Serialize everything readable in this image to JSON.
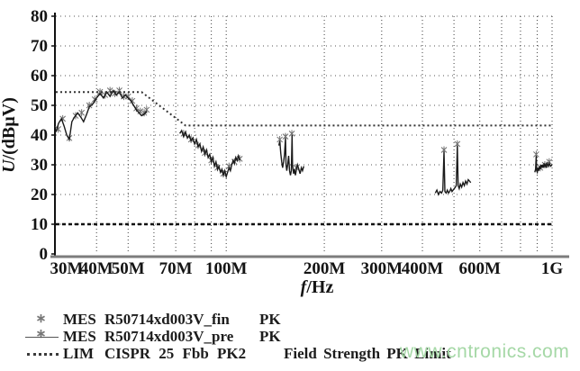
{
  "watermark": {
    "text": "www.cntronics.com",
    "color": "#a5d8a6"
  },
  "legend": {
    "marker_glyph": "∗ ∗",
    "rows": [
      {
        "symbol": "x-markers",
        "type": "MES",
        "name": "R50714xd003V_fin",
        "suffix": "PK"
      },
      {
        "symbol": "solid-line",
        "type": "MES",
        "name": "R50714xd003V_pre",
        "suffix": "PK"
      },
      {
        "symbol": "dotted-line",
        "type": "LIM",
        "name": "CISPR 25 Fbb PK2",
        "suffix": ""
      }
    ],
    "extra_label": "Field Strength PK  Limit"
  },
  "chart_data": {
    "type": "line",
    "title": "",
    "xlabel": "f/Hz",
    "ylabel": "U/(dBµV)",
    "x_scale": "log",
    "x_unit": "MHz",
    "xlim_mhz": [
      30,
      1000
    ],
    "ylim": [
      0,
      80
    ],
    "grid": true,
    "legend_position": "bottom-left",
    "y_ticks": [
      0,
      10,
      20,
      30,
      40,
      50,
      60,
      70,
      80
    ],
    "x_ticks": [
      {
        "f_mhz": 30,
        "label": "30M"
      },
      {
        "f_mhz": 40,
        "label": "40M"
      },
      {
        "f_mhz": 50,
        "label": "50M"
      },
      {
        "f_mhz": 70,
        "label": "70M"
      },
      {
        "f_mhz": 100,
        "label": "100M"
      },
      {
        "f_mhz": 200,
        "label": "200M"
      },
      {
        "f_mhz": 300,
        "label": "300M"
      },
      {
        "f_mhz": 400,
        "label": "400M"
      },
      {
        "f_mhz": 600,
        "label": "600M"
      },
      {
        "f_mhz": 1000,
        "label": "1G"
      }
    ],
    "x_gridlines_mhz": [
      40,
      50,
      60,
      70,
      80,
      90,
      100,
      200,
      300,
      400,
      500,
      600,
      700,
      800,
      900,
      1000
    ],
    "series": [
      {
        "id": "fin",
        "name": "MES R50714xd003V_fin PK",
        "type": "scatter",
        "marker": "x",
        "color": "#6f6f6f",
        "points": [
          [
            30.5,
            42
          ],
          [
            31.5,
            45.5
          ],
          [
            33,
            39
          ],
          [
            34.5,
            46.5
          ],
          [
            36,
            47.5
          ],
          [
            38,
            50
          ],
          [
            39.5,
            52
          ],
          [
            41,
            54.5
          ],
          [
            42.5,
            53.5
          ],
          [
            44,
            55
          ],
          [
            45.5,
            54
          ],
          [
            47,
            55
          ],
          [
            48.5,
            53
          ],
          [
            50,
            53
          ],
          [
            51.5,
            51.5
          ],
          [
            53,
            49
          ],
          [
            54.5,
            48
          ],
          [
            56,
            47.5
          ],
          [
            57,
            48.5
          ],
          [
            74,
            40.5
          ],
          [
            78,
            38.5
          ],
          [
            82,
            36.5
          ],
          [
            86,
            34
          ],
          [
            90,
            31.5
          ],
          [
            94,
            29
          ],
          [
            98,
            27
          ],
          [
            102,
            29.5
          ],
          [
            106,
            31
          ],
          [
            110,
            32
          ],
          [
            146,
            38.5
          ],
          [
            152,
            39.5
          ],
          [
            159,
            40.5
          ],
          [
            164,
            29
          ],
          [
            466,
            35
          ],
          [
            512,
            37
          ],
          [
            894,
            33.5
          ],
          [
            920,
            29
          ],
          [
            950,
            30
          ],
          [
            980,
            31
          ]
        ]
      },
      {
        "id": "pre",
        "name": "MES R50714xd003V_pre PK",
        "type": "line",
        "color": "#1a1a1a",
        "segments": [
          [
            [
              30,
              41
            ],
            [
              30.6,
              44
            ],
            [
              31.2,
              45.5
            ],
            [
              31.8,
              43
            ],
            [
              32.4,
              40
            ],
            [
              33,
              38.5
            ],
            [
              33.6,
              44.5
            ],
            [
              34.2,
              46
            ],
            [
              35,
              47.5
            ],
            [
              35.8,
              46
            ],
            [
              36.5,
              44.5
            ],
            [
              37.3,
              47
            ],
            [
              38,
              49.5
            ],
            [
              39,
              50.5
            ],
            [
              40,
              52.5
            ],
            [
              41,
              54
            ],
            [
              42,
              52.5
            ],
            [
              43,
              54.5
            ],
            [
              44,
              53
            ],
            [
              45,
              55
            ],
            [
              46,
              53.5
            ],
            [
              47,
              54.5
            ],
            [
              48,
              52.5
            ],
            [
              49,
              53.5
            ],
            [
              50,
              52.5
            ],
            [
              51,
              51.5
            ],
            [
              52,
              50
            ],
            [
              53,
              48.5
            ],
            [
              54,
              47.5
            ],
            [
              55,
              46.5
            ],
            [
              56,
              47
            ],
            [
              57,
              48
            ]
          ],
          [
            [
              72,
              40.5
            ],
            [
              73,
              41.5
            ],
            [
              74,
              39.5
            ],
            [
              75,
              41
            ],
            [
              76,
              39
            ],
            [
              77,
              40
            ],
            [
              78,
              38
            ],
            [
              79,
              39
            ],
            [
              80,
              37
            ],
            [
              81,
              38.5
            ],
            [
              82,
              36
            ],
            [
              83,
              37
            ],
            [
              84,
              34.5
            ],
            [
              85,
              36
            ],
            [
              86,
              33.5
            ],
            [
              87,
              35
            ],
            [
              88,
              32.5
            ],
            [
              89,
              33.5
            ],
            [
              90,
              31
            ],
            [
              91,
              32.5
            ],
            [
              92,
              29.5
            ],
            [
              93,
              31
            ],
            [
              94,
              28.5
            ],
            [
              95,
              29.5
            ],
            [
              96,
              27.5
            ],
            [
              97,
              28.5
            ],
            [
              98,
              26.5
            ],
            [
              99,
              28
            ],
            [
              100,
              26
            ],
            [
              101,
              27.5
            ],
            [
              102,
              29
            ],
            [
              103,
              28
            ],
            [
              104,
              30
            ],
            [
              105,
              31.5
            ],
            [
              106,
              30.5
            ],
            [
              107,
              32.5
            ],
            [
              108,
              31.5
            ],
            [
              109,
              33
            ],
            [
              110,
              31.5
            ]
          ],
          [
            [
              145,
              36.5
            ],
            [
              146,
              38
            ],
            [
              147,
              34
            ],
            [
              148,
              31
            ],
            [
              149,
              29
            ],
            [
              150,
              31
            ],
            [
              151,
              33.5
            ],
            [
              152,
              39
            ],
            [
              152.6,
              30
            ],
            [
              153.4,
              28
            ],
            [
              154.4,
              30
            ],
            [
              155.4,
              33
            ],
            [
              156.4,
              28
            ],
            [
              157.4,
              26.5
            ],
            [
              158.4,
              28
            ],
            [
              159.2,
              40
            ],
            [
              159.8,
              30
            ],
            [
              161,
              27
            ],
            [
              162,
              28.5
            ],
            [
              163,
              26.5
            ],
            [
              164,
              28
            ],
            [
              165.5,
              30
            ],
            [
              167,
              28.5
            ],
            [
              168.5,
              27
            ],
            [
              170,
              29
            ],
            [
              171.5,
              28
            ],
            [
              173,
              29.5
            ]
          ],
          [
            [
              438,
              20.5
            ],
            [
              443,
              21.5
            ],
            [
              448,
              20
            ],
            [
              453,
              21
            ],
            [
              458,
              20.5
            ],
            [
              462,
              21.5
            ],
            [
              466,
              34.5
            ],
            [
              469,
              21
            ],
            [
              473,
              20.5
            ],
            [
              477,
              21.5
            ],
            [
              481,
              20.5
            ],
            [
              485,
              21
            ],
            [
              489,
              22
            ],
            [
              493,
              21
            ],
            [
              497,
              21.5
            ],
            [
              501,
              22
            ],
            [
              505,
              22.5
            ],
            [
              508,
              23
            ],
            [
              512,
              36.5
            ],
            [
              515,
              23
            ],
            [
              519,
              22
            ],
            [
              523,
              23.5
            ],
            [
              528,
              22.5
            ],
            [
              533,
              24
            ],
            [
              538,
              23
            ],
            [
              543,
              24.5
            ],
            [
              548,
              23.5
            ],
            [
              553,
              25
            ],
            [
              558,
              24.5
            ],
            [
              563,
              24
            ]
          ],
          [
            [
              885,
              27.5
            ],
            [
              890,
              28.5
            ],
            [
              894,
              33
            ],
            [
              897,
              28
            ],
            [
              901,
              27.5
            ],
            [
              906,
              29
            ],
            [
              910,
              28
            ],
            [
              915,
              29.5
            ],
            [
              920,
              28.5
            ],
            [
              925,
              30
            ],
            [
              930,
              29
            ],
            [
              935,
              30
            ],
            [
              940,
              29
            ],
            [
              945,
              30.5
            ],
            [
              950,
              29.5
            ],
            [
              955,
              30
            ],
            [
              960,
              29
            ],
            [
              965,
              30.5
            ],
            [
              970,
              30
            ],
            [
              975,
              29.5
            ],
            [
              980,
              30.5
            ],
            [
              985,
              30
            ],
            [
              990,
              29.5
            ],
            [
              1000,
              30
            ]
          ]
        ]
      },
      {
        "id": "cispr-limit",
        "name": "LIM CISPR 25 Fbb PK2",
        "type": "limit",
        "color": "#333333",
        "dash": "2 3",
        "width": 2,
        "points": [
          [
            30,
            54.5
          ],
          [
            55,
            54.5
          ],
          [
            75,
            43.2
          ],
          [
            1000,
            43.2
          ]
        ]
      },
      {
        "id": "field-strength-limit",
        "name": "Field Strength PK Limit",
        "type": "limit",
        "color": "#101010",
        "dash": "4 3",
        "width": 2.5,
        "points": [
          [
            30,
            10
          ],
          [
            1000,
            10
          ]
        ]
      }
    ]
  }
}
